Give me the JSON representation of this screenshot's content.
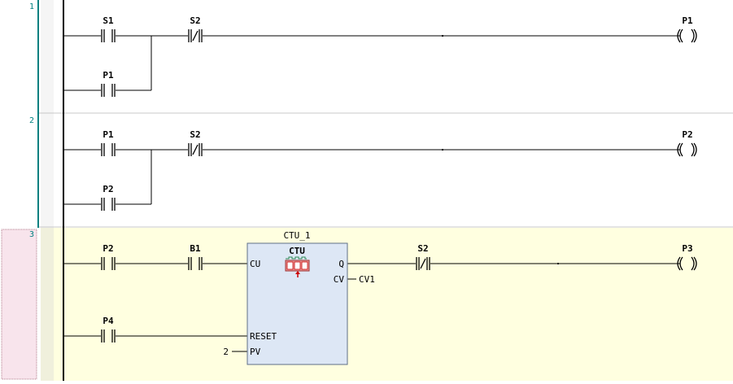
{
  "colors": {
    "rail": "#000000",
    "gutter_line": "#008080",
    "rung_number": "#008080",
    "rung_separator": "#c8c8c8",
    "selected_rung_bg": "#ffffe0",
    "selected_gutter_bg": "#f8e4ec",
    "fb_fill": "#dde7f5",
    "fb_border": "#5f6f88",
    "wire": "#000000"
  },
  "rungs": [
    {
      "number": "1",
      "contacts": [
        {
          "label": "S1",
          "type": "NO"
        },
        {
          "label": "S2",
          "type": "NC"
        },
        {
          "label": "P1",
          "type": "NO"
        }
      ],
      "coil": "P1"
    },
    {
      "number": "2",
      "contacts": [
        {
          "label": "P1",
          "type": "NO"
        },
        {
          "label": "S2",
          "type": "NC"
        },
        {
          "label": "P2",
          "type": "NO"
        }
      ],
      "coil": "P2"
    },
    {
      "number": "3",
      "contacts": [
        {
          "label": "P2",
          "type": "NO"
        },
        {
          "label": "B1",
          "type": "NO"
        },
        {
          "label": "S2",
          "type": "NC"
        },
        {
          "label": "P4",
          "type": "NO"
        }
      ],
      "coil": "P3",
      "function_block": {
        "instance": "CTU_1",
        "type": "CTU",
        "pins": {
          "cu": "CU",
          "q": "Q",
          "cv": "CV",
          "reset": "RESET",
          "pv": "PV"
        },
        "cv_output": "CV1",
        "pv_value": "2"
      }
    }
  ]
}
